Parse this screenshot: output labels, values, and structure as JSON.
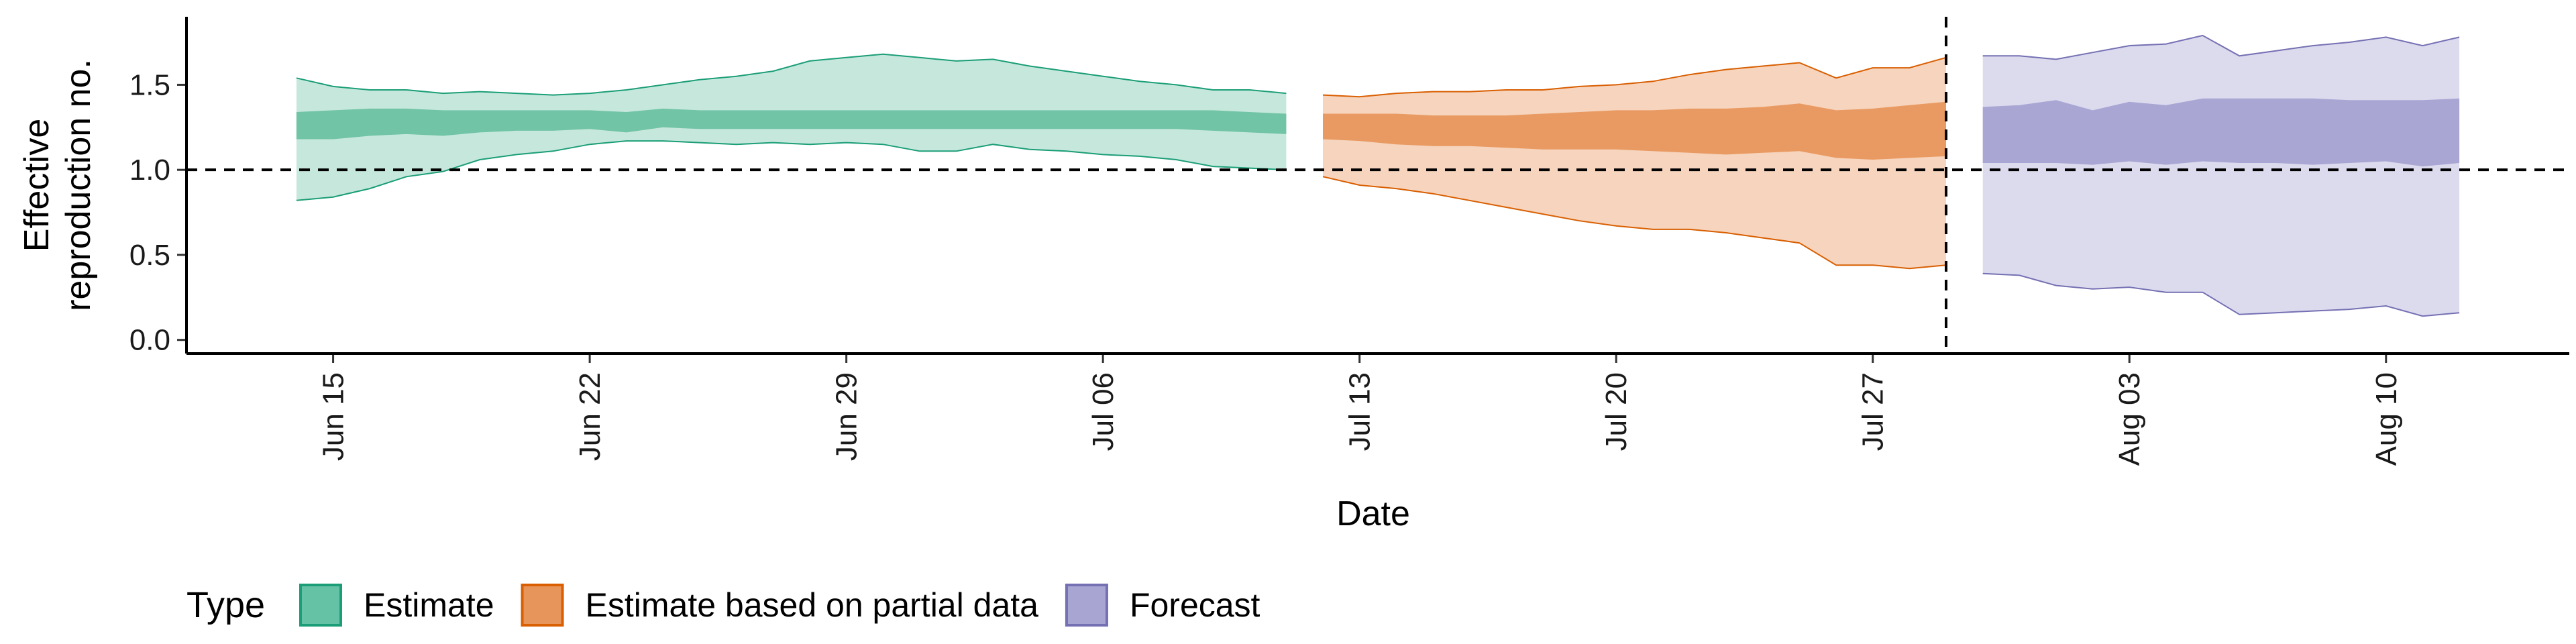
{
  "chart_data": {
    "type": "area",
    "title": "",
    "xlabel": "Date",
    "ylabel_lines": [
      "Effective",
      "reproduction no."
    ],
    "x_ticks": [
      "2021-06-15",
      "2021-06-22",
      "2021-06-29",
      "2021-07-06",
      "2021-07-13",
      "2021-07-20",
      "2021-07-27",
      "2021-08-03",
      "2021-08-10"
    ],
    "x_tick_labels": [
      "Jun 15",
      "Jun 22",
      "Jun 29",
      "Jul 06",
      "Jul 13",
      "Jul 20",
      "Jul 27",
      "Aug 03",
      "Aug 10"
    ],
    "y_ticks": [
      0.0,
      0.5,
      1.0,
      1.5
    ],
    "y_tick_labels": [
      "0.0",
      "0.5",
      "1.0",
      "1.5"
    ],
    "xlim": [
      "2021-06-11",
      "2021-08-15"
    ],
    "ylim": [
      -0.08,
      1.9
    ],
    "hline": 1.0,
    "vline": "2021-07-29",
    "grid": false,
    "legend": {
      "title": "Type",
      "position": "bottom",
      "items": [
        {
          "label": "Estimate",
          "fill": "#66c2a5",
          "stroke": "#1b9e77"
        },
        {
          "label": "Estimate based on partial data",
          "fill": "#e8955c",
          "stroke": "#d95f02"
        },
        {
          "label": "Forecast",
          "fill": "#a8a5d2",
          "stroke": "#7570b3"
        }
      ]
    },
    "series": [
      {
        "name": "Estimate",
        "outer_fill": "#c6e8dc",
        "inner_fill": "#72c4a7",
        "stroke": "#1b9e77",
        "points": [
          {
            "x": "2021-06-14",
            "lo90": 0.82,
            "lo50": 1.18,
            "hi50": 1.34,
            "hi90": 1.54
          },
          {
            "x": "2021-06-15",
            "lo90": 0.84,
            "lo50": 1.18,
            "hi50": 1.35,
            "hi90": 1.49
          },
          {
            "x": "2021-06-16",
            "lo90": 0.89,
            "lo50": 1.2,
            "hi50": 1.36,
            "hi90": 1.47
          },
          {
            "x": "2021-06-17",
            "lo90": 0.96,
            "lo50": 1.21,
            "hi50": 1.36,
            "hi90": 1.47
          },
          {
            "x": "2021-06-18",
            "lo90": 0.99,
            "lo50": 1.2,
            "hi50": 1.35,
            "hi90": 1.45
          },
          {
            "x": "2021-06-19",
            "lo90": 1.06,
            "lo50": 1.22,
            "hi50": 1.35,
            "hi90": 1.46
          },
          {
            "x": "2021-06-20",
            "lo90": 1.09,
            "lo50": 1.23,
            "hi50": 1.35,
            "hi90": 1.45
          },
          {
            "x": "2021-06-21",
            "lo90": 1.11,
            "lo50": 1.23,
            "hi50": 1.35,
            "hi90": 1.44
          },
          {
            "x": "2021-06-22",
            "lo90": 1.15,
            "lo50": 1.24,
            "hi50": 1.35,
            "hi90": 1.45
          },
          {
            "x": "2021-06-23",
            "lo90": 1.17,
            "lo50": 1.22,
            "hi50": 1.34,
            "hi90": 1.47
          },
          {
            "x": "2021-06-24",
            "lo90": 1.17,
            "lo50": 1.25,
            "hi50": 1.36,
            "hi90": 1.5
          },
          {
            "x": "2021-06-25",
            "lo90": 1.16,
            "lo50": 1.24,
            "hi50": 1.35,
            "hi90": 1.53
          },
          {
            "x": "2021-06-26",
            "lo90": 1.15,
            "lo50": 1.24,
            "hi50": 1.35,
            "hi90": 1.55
          },
          {
            "x": "2021-06-27",
            "lo90": 1.16,
            "lo50": 1.24,
            "hi50": 1.35,
            "hi90": 1.58
          },
          {
            "x": "2021-06-28",
            "lo90": 1.15,
            "lo50": 1.24,
            "hi50": 1.35,
            "hi90": 1.64
          },
          {
            "x": "2021-06-29",
            "lo90": 1.16,
            "lo50": 1.24,
            "hi50": 1.35,
            "hi90": 1.66
          },
          {
            "x": "2021-06-30",
            "lo90": 1.15,
            "lo50": 1.24,
            "hi50": 1.35,
            "hi90": 1.68
          },
          {
            "x": "2021-07-01",
            "lo90": 1.11,
            "lo50": 1.24,
            "hi50": 1.35,
            "hi90": 1.66
          },
          {
            "x": "2021-07-02",
            "lo90": 1.11,
            "lo50": 1.24,
            "hi50": 1.35,
            "hi90": 1.64
          },
          {
            "x": "2021-07-03",
            "lo90": 1.15,
            "lo50": 1.24,
            "hi50": 1.35,
            "hi90": 1.65
          },
          {
            "x": "2021-07-04",
            "lo90": 1.12,
            "lo50": 1.24,
            "hi50": 1.35,
            "hi90": 1.61
          },
          {
            "x": "2021-07-05",
            "lo90": 1.11,
            "lo50": 1.24,
            "hi50": 1.35,
            "hi90": 1.58
          },
          {
            "x": "2021-07-06",
            "lo90": 1.09,
            "lo50": 1.24,
            "hi50": 1.35,
            "hi90": 1.55
          },
          {
            "x": "2021-07-07",
            "lo90": 1.08,
            "lo50": 1.24,
            "hi50": 1.35,
            "hi90": 1.52
          },
          {
            "x": "2021-07-08",
            "lo90": 1.06,
            "lo50": 1.24,
            "hi50": 1.35,
            "hi90": 1.5
          },
          {
            "x": "2021-07-09",
            "lo90": 1.02,
            "lo50": 1.23,
            "hi50": 1.35,
            "hi90": 1.47
          },
          {
            "x": "2021-07-10",
            "lo90": 1.01,
            "lo50": 1.22,
            "hi50": 1.34,
            "hi90": 1.47
          },
          {
            "x": "2021-07-11",
            "lo90": 1.0,
            "lo50": 1.21,
            "hi50": 1.33,
            "hi90": 1.45
          }
        ]
      },
      {
        "name": "Estimate based on partial data",
        "outer_fill": "#f6d4bd",
        "inner_fill": "#e99a62",
        "stroke": "#d95f02",
        "points": [
          {
            "x": "2021-07-12",
            "lo90": 0.96,
            "lo50": 1.18,
            "hi50": 1.33,
            "hi90": 1.44
          },
          {
            "x": "2021-07-13",
            "lo90": 0.91,
            "lo50": 1.17,
            "hi50": 1.33,
            "hi90": 1.43
          },
          {
            "x": "2021-07-14",
            "lo90": 0.89,
            "lo50": 1.15,
            "hi50": 1.33,
            "hi90": 1.45
          },
          {
            "x": "2021-07-15",
            "lo90": 0.86,
            "lo50": 1.14,
            "hi50": 1.32,
            "hi90": 1.46
          },
          {
            "x": "2021-07-16",
            "lo90": 0.82,
            "lo50": 1.14,
            "hi50": 1.32,
            "hi90": 1.46
          },
          {
            "x": "2021-07-17",
            "lo90": 0.78,
            "lo50": 1.13,
            "hi50": 1.32,
            "hi90": 1.47
          },
          {
            "x": "2021-07-18",
            "lo90": 0.74,
            "lo50": 1.12,
            "hi50": 1.33,
            "hi90": 1.47
          },
          {
            "x": "2021-07-19",
            "lo90": 0.7,
            "lo50": 1.12,
            "hi50": 1.34,
            "hi90": 1.49
          },
          {
            "x": "2021-07-20",
            "lo90": 0.67,
            "lo50": 1.12,
            "hi50": 1.35,
            "hi90": 1.5
          },
          {
            "x": "2021-07-21",
            "lo90": 0.65,
            "lo50": 1.11,
            "hi50": 1.35,
            "hi90": 1.52
          },
          {
            "x": "2021-07-22",
            "lo90": 0.65,
            "lo50": 1.1,
            "hi50": 1.36,
            "hi90": 1.56
          },
          {
            "x": "2021-07-23",
            "lo90": 0.63,
            "lo50": 1.09,
            "hi50": 1.36,
            "hi90": 1.59
          },
          {
            "x": "2021-07-24",
            "lo90": 0.6,
            "lo50": 1.1,
            "hi50": 1.37,
            "hi90": 1.61
          },
          {
            "x": "2021-07-25",
            "lo90": 0.57,
            "lo50": 1.11,
            "hi50": 1.39,
            "hi90": 1.63
          },
          {
            "x": "2021-07-26",
            "lo90": 0.44,
            "lo50": 1.07,
            "hi50": 1.35,
            "hi90": 1.54
          },
          {
            "x": "2021-07-27",
            "lo90": 0.44,
            "lo50": 1.06,
            "hi50": 1.36,
            "hi90": 1.6
          },
          {
            "x": "2021-07-28",
            "lo90": 0.42,
            "lo50": 1.07,
            "hi50": 1.38,
            "hi90": 1.6
          },
          {
            "x": "2021-07-29",
            "lo90": 0.44,
            "lo50": 1.08,
            "hi50": 1.4,
            "hi90": 1.66
          }
        ]
      },
      {
        "name": "Forecast",
        "outer_fill": "#dcdbee",
        "inner_fill": "#a9a6d4",
        "stroke": "#7570b3",
        "points": [
          {
            "x": "2021-07-30",
            "lo90": 0.39,
            "lo50": 1.04,
            "hi50": 1.37,
            "hi90": 1.67
          },
          {
            "x": "2021-07-31",
            "lo90": 0.38,
            "lo50": 1.04,
            "hi50": 1.38,
            "hi90": 1.67
          },
          {
            "x": "2021-08-01",
            "lo90": 0.32,
            "lo50": 1.04,
            "hi50": 1.41,
            "hi90": 1.65
          },
          {
            "x": "2021-08-02",
            "lo90": 0.3,
            "lo50": 1.03,
            "hi50": 1.35,
            "hi90": 1.69
          },
          {
            "x": "2021-08-03",
            "lo90": 0.31,
            "lo50": 1.05,
            "hi50": 1.4,
            "hi90": 1.73
          },
          {
            "x": "2021-08-04",
            "lo90": 0.28,
            "lo50": 1.03,
            "hi50": 1.38,
            "hi90": 1.74
          },
          {
            "x": "2021-08-05",
            "lo90": 0.28,
            "lo50": 1.05,
            "hi50": 1.42,
            "hi90": 1.79
          },
          {
            "x": "2021-08-06",
            "lo90": 0.15,
            "lo50": 1.04,
            "hi50": 1.42,
            "hi90": 1.67
          },
          {
            "x": "2021-08-07",
            "lo90": 0.16,
            "lo50": 1.04,
            "hi50": 1.42,
            "hi90": 1.7
          },
          {
            "x": "2021-08-08",
            "lo90": 0.17,
            "lo50": 1.03,
            "hi50": 1.42,
            "hi90": 1.73
          },
          {
            "x": "2021-08-09",
            "lo90": 0.18,
            "lo50": 1.04,
            "hi50": 1.41,
            "hi90": 1.75
          },
          {
            "x": "2021-08-10",
            "lo90": 0.2,
            "lo50": 1.05,
            "hi50": 1.41,
            "hi90": 1.78
          },
          {
            "x": "2021-08-11",
            "lo90": 0.14,
            "lo50": 1.02,
            "hi50": 1.41,
            "hi90": 1.73
          },
          {
            "x": "2021-08-12",
            "lo90": 0.16,
            "lo50": 1.04,
            "hi50": 1.42,
            "hi90": 1.78
          }
        ]
      }
    ]
  }
}
